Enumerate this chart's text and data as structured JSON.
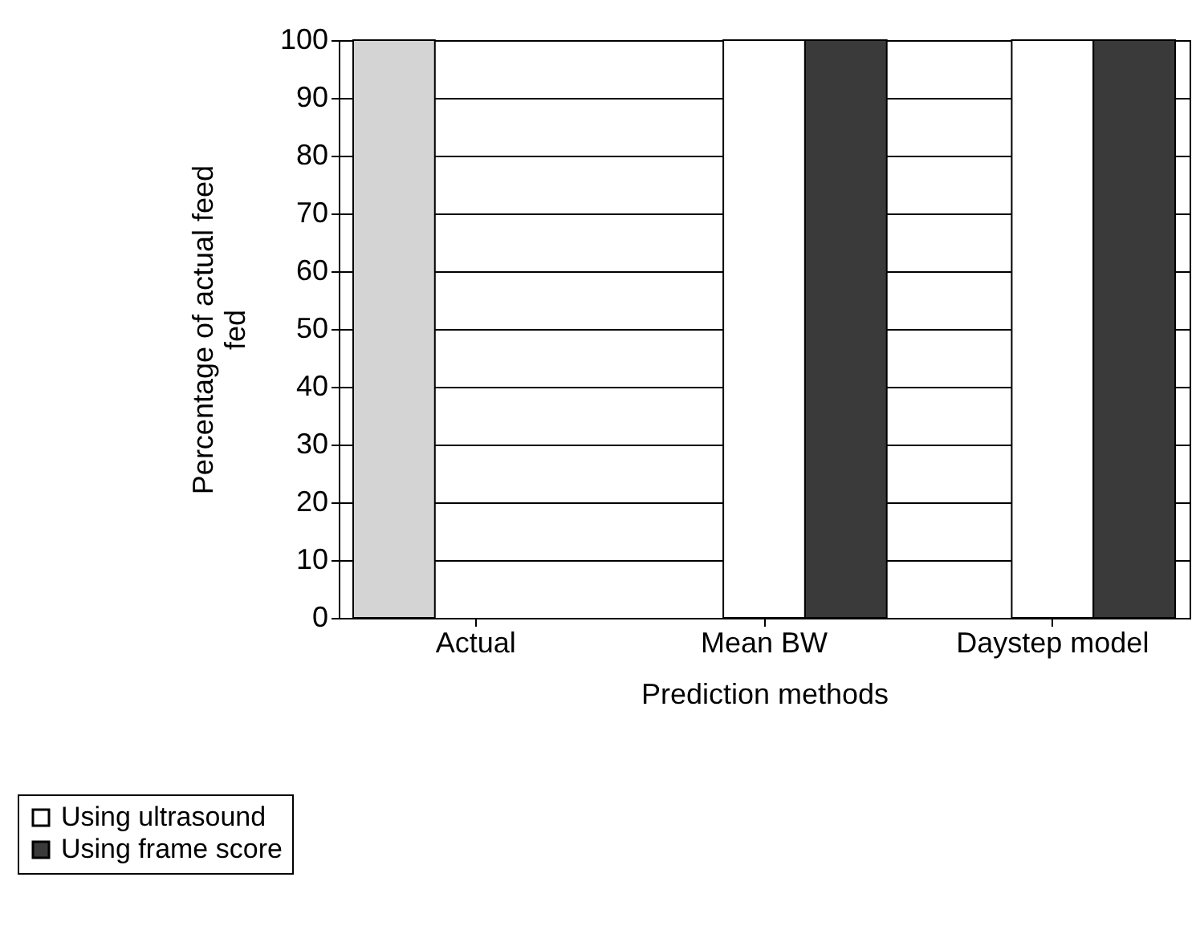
{
  "chart_data": {
    "type": "bar",
    "xlabel": "Prediction methods",
    "ylabel": "Percentage of actual feed fed",
    "categories": [
      "Actual",
      "Mean BW",
      "Daystep model"
    ],
    "series": [
      {
        "color": "#d4d4d4",
        "values": [
          100,
          null,
          null
        ]
      },
      {
        "name": "Using ultrasound",
        "color": "#ffffff",
        "values": [
          null,
          100,
          100
        ]
      },
      {
        "name": "Using frame score",
        "color": "#3a3a3a",
        "values": [
          null,
          100,
          100
        ]
      }
    ],
    "ylim": [
      0,
      100
    ],
    "yticks": [
      0,
      10,
      20,
      30,
      40,
      50,
      60,
      70,
      80,
      90,
      100
    ],
    "grid": "y",
    "legend": "bottom left"
  }
}
